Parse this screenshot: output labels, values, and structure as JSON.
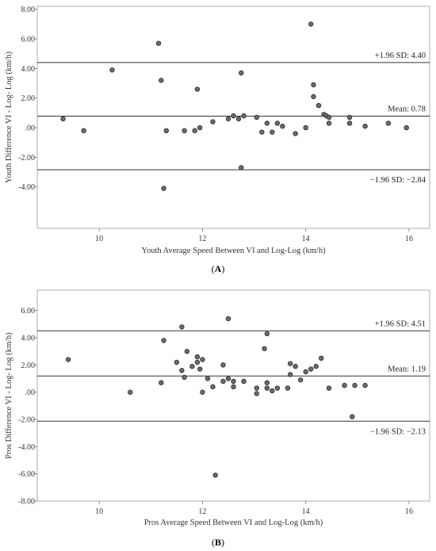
{
  "chart_data": [
    {
      "type": "scatter",
      "panel_label": "A",
      "xlabel": "Youth Average Speed Between VI and Log-Log (km/h)",
      "ylabel": "Youth Difference VI - Log- Log (km/h)",
      "xlim": [
        8.8,
        16.4
      ],
      "ylim": [
        -6.8,
        8.2
      ],
      "xticks": [
        {
          "value": 10,
          "label": "10"
        },
        {
          "value": 12,
          "label": "12"
        },
        {
          "value": 14,
          "label": "14"
        },
        {
          "value": 16,
          "label": "16"
        }
      ],
      "yticks": [
        {
          "value": 8,
          "label": "8.00"
        },
        {
          "value": 6,
          "label": "6.00"
        },
        {
          "value": 4,
          "label": "4.00"
        },
        {
          "value": 2,
          "label": "2.00"
        },
        {
          "value": 0,
          "label": ".00"
        },
        {
          "value": -2,
          "label": "-2.00"
        },
        {
          "value": -4,
          "label": "-4.00"
        }
      ],
      "reference_lines": [
        {
          "value": 4.4,
          "label": "+1.96 SD: 4.40",
          "label_position": "above"
        },
        {
          "value": 0.78,
          "label": "Mean: 0.78",
          "label_position": "above"
        },
        {
          "value": -2.84,
          "label": "−1.96 SD: −2.84",
          "label_position": "below"
        }
      ],
      "points": [
        [
          9.3,
          0.6
        ],
        [
          9.7,
          -0.2
        ],
        [
          10.25,
          3.9
        ],
        [
          11.15,
          5.7
        ],
        [
          11.2,
          3.2
        ],
        [
          11.25,
          -4.1
        ],
        [
          11.3,
          -0.2
        ],
        [
          11.65,
          -0.2
        ],
        [
          11.85,
          -0.2
        ],
        [
          11.9,
          2.6
        ],
        [
          11.95,
          0.0
        ],
        [
          12.2,
          0.4
        ],
        [
          12.5,
          0.6
        ],
        [
          12.6,
          0.8
        ],
        [
          12.7,
          0.6
        ],
        [
          12.75,
          3.7
        ],
        [
          12.75,
          -2.7
        ],
        [
          12.8,
          0.8
        ],
        [
          13.05,
          0.7
        ],
        [
          13.15,
          -0.3
        ],
        [
          13.25,
          0.3
        ],
        [
          13.35,
          -0.3
        ],
        [
          13.45,
          0.3
        ],
        [
          13.55,
          0.1
        ],
        [
          13.8,
          -0.4
        ],
        [
          14.0,
          0.0
        ],
        [
          14.1,
          7.0
        ],
        [
          14.15,
          2.9
        ],
        [
          14.15,
          2.1
        ],
        [
          14.25,
          1.5
        ],
        [
          14.35,
          0.9
        ],
        [
          14.4,
          0.8
        ],
        [
          14.45,
          0.7
        ],
        [
          14.45,
          0.3
        ],
        [
          14.85,
          0.7
        ],
        [
          14.85,
          0.3
        ],
        [
          15.15,
          0.1
        ],
        [
          15.6,
          0.3
        ],
        [
          15.95,
          0.0
        ]
      ]
    },
    {
      "type": "scatter",
      "panel_label": "B",
      "xlabel": "Pros Average Speed Between VI and Log-Log (km/h)",
      "ylabel": "Pros Difference VI - Log- Log (km/h)",
      "xlim": [
        8.8,
        16.4
      ],
      "ylim": [
        -8.0,
        7.5
      ],
      "xticks": [
        {
          "value": 10,
          "label": "10"
        },
        {
          "value": 12,
          "label": "12"
        },
        {
          "value": 14,
          "label": "14"
        },
        {
          "value": 16,
          "label": "16"
        }
      ],
      "yticks": [
        {
          "value": 6,
          "label": "6.00"
        },
        {
          "value": 4,
          "label": "4.00"
        },
        {
          "value": 2,
          "label": "2.00"
        },
        {
          "value": 0,
          "label": ".00"
        },
        {
          "value": -2,
          "label": "-2.00"
        },
        {
          "value": -4,
          "label": "-4.00"
        },
        {
          "value": -6,
          "label": "-6.00"
        },
        {
          "value": -8,
          "label": "-8.00"
        }
      ],
      "reference_lines": [
        {
          "value": 4.51,
          "label": "+1.96 SD: 4.51",
          "label_position": "above"
        },
        {
          "value": 1.19,
          "label": "Mean: 1.19",
          "label_position": "above"
        },
        {
          "value": -2.13,
          "label": "−1.96 SD: −2.13",
          "label_position": "below"
        }
      ],
      "points": [
        [
          9.4,
          2.4
        ],
        [
          10.6,
          0.0
        ],
        [
          11.2,
          0.7
        ],
        [
          11.25,
          3.8
        ],
        [
          11.5,
          2.2
        ],
        [
          11.6,
          4.8
        ],
        [
          11.6,
          1.6
        ],
        [
          11.65,
          1.1
        ],
        [
          11.7,
          3.0
        ],
        [
          11.8,
          1.9
        ],
        [
          11.9,
          2.6
        ],
        [
          11.9,
          2.2
        ],
        [
          11.95,
          1.7
        ],
        [
          12.0,
          2.4
        ],
        [
          12.0,
          0.0
        ],
        [
          12.1,
          1.0
        ],
        [
          12.2,
          0.4
        ],
        [
          12.25,
          -6.1
        ],
        [
          12.4,
          2.0
        ],
        [
          12.4,
          0.8
        ],
        [
          12.5,
          5.4
        ],
        [
          12.5,
          1.0
        ],
        [
          12.6,
          0.8
        ],
        [
          12.6,
          0.4
        ],
        [
          12.8,
          0.8
        ],
        [
          13.05,
          0.3
        ],
        [
          13.05,
          -0.1
        ],
        [
          13.2,
          3.2
        ],
        [
          13.25,
          4.3
        ],
        [
          13.25,
          0.7
        ],
        [
          13.25,
          0.3
        ],
        [
          13.35,
          0.1
        ],
        [
          13.45,
          0.3
        ],
        [
          13.65,
          0.3
        ],
        [
          13.7,
          2.1
        ],
        [
          13.7,
          1.3
        ],
        [
          13.8,
          1.9
        ],
        [
          13.9,
          0.9
        ],
        [
          14.0,
          1.5
        ],
        [
          14.1,
          1.7
        ],
        [
          14.2,
          1.9
        ],
        [
          14.3,
          2.5
        ],
        [
          14.45,
          0.3
        ],
        [
          14.75,
          0.5
        ],
        [
          14.9,
          -1.8
        ],
        [
          14.95,
          0.5
        ],
        [
          15.15,
          0.5
        ]
      ]
    }
  ]
}
